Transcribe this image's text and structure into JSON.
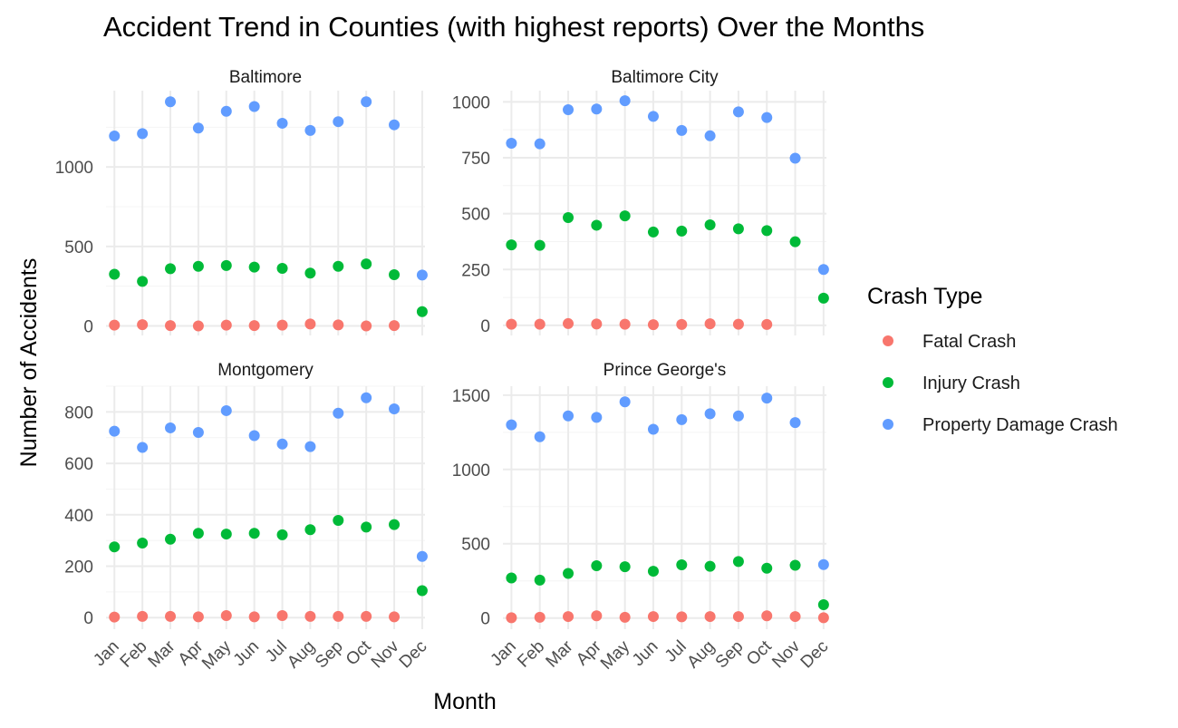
{
  "chart_data": {
    "type": "scatter",
    "title": "Accident Trend in Counties (with highest reports) Over the Months",
    "xlabel": "Month",
    "ylabel": "Number of Accidents",
    "grid": true,
    "legend": {
      "title": "Crash Type",
      "placement": "right",
      "entries": [
        {
          "name": "Fatal Crash",
          "color": "#F8766D"
        },
        {
          "name": "Injury Crash",
          "color": "#00BA38"
        },
        {
          "name": "Property Damage Crash",
          "color": "#619CFF"
        }
      ]
    },
    "categories": [
      "Jan",
      "Feb",
      "Mar",
      "Apr",
      "May",
      "Jun",
      "Jul",
      "Aug",
      "Sep",
      "Oct",
      "Nov",
      "Dec"
    ],
    "panels": [
      {
        "name": "Baltimore",
        "ylim": [
          -60,
          1480
        ],
        "yticks": [
          0,
          500,
          1000
        ],
        "series": [
          {
            "name": "Fatal Crash",
            "values": [
              5,
              8,
              2,
              0,
              5,
              2,
              5,
              12,
              6,
              0,
              2,
              null
            ]
          },
          {
            "name": "Injury Crash",
            "values": [
              325,
              280,
              360,
              375,
              380,
              370,
              362,
              332,
              375,
              390,
              322,
              90
            ]
          },
          {
            "name": "Property Damage Crash",
            "values": [
              1195,
              1210,
              1410,
              1245,
              1350,
              1380,
              1275,
              1230,
              1285,
              1410,
              1265,
              320
            ]
          }
        ]
      },
      {
        "name": "Baltimore City",
        "ylim": [
          -45,
          1050
        ],
        "yticks": [
          0,
          250,
          500,
          750,
          1000
        ],
        "series": [
          {
            "name": "Fatal Crash",
            "values": [
              5,
              5,
              8,
              6,
              5,
              3,
              4,
              7,
              5,
              4,
              null,
              null
            ]
          },
          {
            "name": "Injury Crash",
            "values": [
              360,
              358,
              482,
              448,
              490,
              418,
              422,
              450,
              432,
              424,
              374,
              122
            ]
          },
          {
            "name": "Property Damage Crash",
            "values": [
              815,
              812,
              965,
              968,
              1005,
              935,
              872,
              848,
              955,
              930,
              748,
              250
            ]
          }
        ]
      },
      {
        "name": "Montgomery",
        "ylim": [
          -45,
          900
        ],
        "yticks": [
          0,
          200,
          400,
          600,
          800
        ],
        "series": [
          {
            "name": "Fatal Crash",
            "values": [
              2,
              5,
              5,
              3,
              8,
              3,
              8,
              5,
              5,
              5,
              3,
              null
            ]
          },
          {
            "name": "Injury Crash",
            "values": [
              275,
              290,
              305,
              328,
              325,
              328,
              322,
              342,
              378,
              352,
              362,
              105
            ]
          },
          {
            "name": "Property Damage Crash",
            "values": [
              725,
              662,
              738,
              720,
              805,
              708,
              675,
              665,
              795,
              855,
              812,
              238
            ]
          }
        ]
      },
      {
        "name": "Prince George's",
        "ylim": [
          -75,
          1560
        ],
        "yticks": [
          0,
          500,
          1000,
          1500
        ],
        "series": [
          {
            "name": "Fatal Crash",
            "values": [
              2,
              5,
              10,
              15,
              5,
              10,
              8,
              10,
              10,
              15,
              10,
              2
            ]
          },
          {
            "name": "Injury Crash",
            "values": [
              270,
              255,
              300,
              352,
              345,
              315,
              358,
              348,
              380,
              335,
              355,
              90
            ]
          },
          {
            "name": "Property Damage Crash",
            "values": [
              1300,
              1220,
              1360,
              1350,
              1455,
              1270,
              1335,
              1375,
              1360,
              1480,
              1315,
              360
            ]
          }
        ]
      }
    ]
  }
}
